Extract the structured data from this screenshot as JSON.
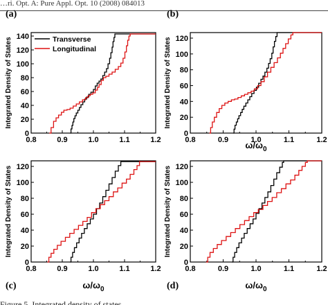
{
  "header_text": "…ri. Opt. A: Pure Appl. Opt. 10 (2008) 084013",
  "footer_text": "Figure 5. Integrated density of states …",
  "colors": {
    "transverse": "#000000",
    "longitudinal": "#dd1111",
    "axis": "#000000"
  },
  "chart_data": [
    {
      "type": "line",
      "panel_label": "(a)",
      "xlabel": "",
      "ylabel": "Integrated Density of States",
      "xlim": [
        0.8,
        1.2
      ],
      "ylim": [
        0,
        145
      ],
      "xticks": [
        "0.8",
        "0.9",
        "1.0",
        "1.1",
        "1.2"
      ],
      "yticks": [
        "0",
        "20",
        "40",
        "60",
        "80",
        "100",
        "120",
        "140"
      ],
      "legend_location": "top-left",
      "series": [
        {
          "name": "Transverse",
          "color": "#000000",
          "points": [
            [
              0.925,
              0
            ],
            [
              0.928,
              6
            ],
            [
              0.931,
              11
            ],
            [
              0.934,
              16
            ],
            [
              0.937,
              21
            ],
            [
              0.941,
              25
            ],
            [
              0.945,
              29
            ],
            [
              0.95,
              33
            ],
            [
              0.955,
              37
            ],
            [
              0.96,
              41
            ],
            [
              0.966,
              45
            ],
            [
              0.972,
              49
            ],
            [
              0.978,
              52
            ],
            [
              0.985,
              56
            ],
            [
              0.992,
              59
            ],
            [
              1.0,
              63
            ],
            [
              1.006,
              68
            ],
            [
              1.012,
              72
            ],
            [
              1.018,
              75
            ],
            [
              1.024,
              78
            ],
            [
              1.03,
              83
            ],
            [
              1.036,
              88
            ],
            [
              1.042,
              93
            ],
            [
              1.047,
              100
            ],
            [
              1.052,
              108
            ],
            [
              1.056,
              116
            ],
            [
              1.06,
              124
            ],
            [
              1.063,
              132
            ],
            [
              1.066,
              138
            ],
            [
              1.069,
              143
            ],
            [
              1.2,
              143
            ]
          ]
        },
        {
          "name": "Longitudinal",
          "color": "#dd1111",
          "points": [
            [
              0.858,
              0
            ],
            [
              0.864,
              8
            ],
            [
              0.872,
              17
            ],
            [
              0.88,
              22
            ],
            [
              0.888,
              26
            ],
            [
              0.897,
              30
            ],
            [
              0.905,
              33
            ],
            [
              0.915,
              34
            ],
            [
              0.925,
              36
            ],
            [
              0.935,
              39
            ],
            [
              0.945,
              42
            ],
            [
              0.955,
              45
            ],
            [
              0.965,
              48
            ],
            [
              0.975,
              51
            ],
            [
              0.983,
              54
            ],
            [
              0.99,
              56
            ],
            [
              0.998,
              58
            ],
            [
              1.006,
              62
            ],
            [
              1.013,
              66
            ],
            [
              1.018,
              70
            ],
            [
              1.025,
              76
            ],
            [
              1.032,
              80
            ],
            [
              1.04,
              82
            ],
            [
              1.05,
              85
            ],
            [
              1.06,
              88
            ],
            [
              1.07,
              92
            ],
            [
              1.08,
              96
            ],
            [
              1.088,
              101
            ],
            [
              1.095,
              108
            ],
            [
              1.101,
              117
            ],
            [
              1.106,
              126
            ],
            [
              1.11,
              134
            ],
            [
              1.114,
              140
            ],
            [
              1.118,
              143
            ],
            [
              1.2,
              143
            ]
          ]
        }
      ]
    },
    {
      "type": "line",
      "panel_label": "(b)",
      "xlabel": "ω/ω",
      "xlabel_sub": "0",
      "ylabel": "Integrated Density of States",
      "xlim": [
        0.8,
        1.2
      ],
      "ylim": [
        0,
        127
      ],
      "xticks": [
        "0.8",
        "0.9",
        "1.0",
        "1.1",
        "1.2"
      ],
      "yticks": [
        "0",
        "20",
        "40",
        "60",
        "80",
        "100",
        "120"
      ],
      "series": [
        {
          "name": "Transverse",
          "color": "#000000",
          "points": [
            [
              0.93,
              0
            ],
            [
              0.933,
              5
            ],
            [
              0.936,
              10
            ],
            [
              0.94,
              14
            ],
            [
              0.944,
              18
            ],
            [
              0.948,
              22
            ],
            [
              0.953,
              26
            ],
            [
              0.958,
              30
            ],
            [
              0.963,
              34
            ],
            [
              0.969,
              38
            ],
            [
              0.975,
              42
            ],
            [
              0.981,
              46
            ],
            [
              0.987,
              50
            ],
            [
              0.994,
              54
            ],
            [
              1.001,
              58
            ],
            [
              1.008,
              63
            ],
            [
              1.015,
              68
            ],
            [
              1.021,
              72
            ],
            [
              1.027,
              77
            ],
            [
              1.033,
              82
            ],
            [
              1.038,
              88
            ],
            [
              1.043,
              94
            ],
            [
              1.048,
              101
            ],
            [
              1.052,
              109
            ],
            [
              1.056,
              116
            ],
            [
              1.06,
              122
            ],
            [
              1.064,
              127
            ],
            [
              1.2,
              127
            ]
          ]
        },
        {
          "name": "Longitudinal",
          "color": "#dd1111",
          "points": [
            [
              0.858,
              0
            ],
            [
              0.862,
              7
            ],
            [
              0.867,
              14
            ],
            [
              0.873,
              20
            ],
            [
              0.88,
              26
            ],
            [
              0.888,
              31
            ],
            [
              0.896,
              35
            ],
            [
              0.905,
              38
            ],
            [
              0.915,
              40
            ],
            [
              0.925,
              42
            ],
            [
              0.935,
              43
            ],
            [
              0.945,
              45
            ],
            [
              0.955,
              47
            ],
            [
              0.965,
              49
            ],
            [
              0.975,
              51
            ],
            [
              0.985,
              53
            ],
            [
              0.995,
              56
            ],
            [
              1.005,
              60
            ],
            [
              1.015,
              65
            ],
            [
              1.025,
              71
            ],
            [
              1.035,
              77
            ],
            [
              1.045,
              83
            ],
            [
              1.055,
              89
            ],
            [
              1.065,
              95
            ],
            [
              1.074,
              101
            ],
            [
              1.082,
              107
            ],
            [
              1.09,
              113
            ],
            [
              1.098,
              119
            ],
            [
              1.106,
              124
            ],
            [
              1.112,
              127
            ],
            [
              1.2,
              127
            ]
          ]
        }
      ]
    },
    {
      "type": "line",
      "panel_label": "(c)",
      "xlabel": "ω/ω",
      "xlabel_sub": "0",
      "ylabel": "Integrated Density of States",
      "xlim": [
        0.8,
        1.2
      ],
      "ylim": [
        0,
        127
      ],
      "xticks": [
        "0.8",
        "0.9",
        "1.0",
        "1.1",
        "1.2"
      ],
      "yticks": [
        "0",
        "20",
        "40",
        "60",
        "80",
        "100",
        "120"
      ],
      "series": [
        {
          "name": "Transverse",
          "color": "#000000",
          "points": [
            [
              0.924,
              0
            ],
            [
              0.928,
              6
            ],
            [
              0.933,
              12
            ],
            [
              0.939,
              18
            ],
            [
              0.946,
              24
            ],
            [
              0.954,
              30
            ],
            [
              0.962,
              36
            ],
            [
              0.971,
              42
            ],
            [
              0.98,
              48
            ],
            [
              0.99,
              54
            ],
            [
              1.0,
              60
            ],
            [
              1.01,
              67
            ],
            [
              1.02,
              74
            ],
            [
              1.03,
              82
            ],
            [
              1.04,
              90
            ],
            [
              1.05,
              98
            ],
            [
              1.06,
              106
            ],
            [
              1.07,
              114
            ],
            [
              1.08,
              121
            ],
            [
              1.088,
              126
            ],
            [
              1.2,
              126
            ]
          ]
        },
        {
          "name": "Longitudinal",
          "color": "#dd1111",
          "points": [
            [
              0.852,
              0
            ],
            [
              0.857,
              6
            ],
            [
              0.864,
              11
            ],
            [
              0.873,
              16
            ],
            [
              0.884,
              21
            ],
            [
              0.896,
              26
            ],
            [
              0.91,
              31
            ],
            [
              0.924,
              36
            ],
            [
              0.938,
              41
            ],
            [
              0.952,
              46
            ],
            [
              0.966,
              51
            ],
            [
              0.98,
              56
            ],
            [
              0.994,
              62
            ],
            [
              1.008,
              67
            ],
            [
              1.022,
              72
            ],
            [
              1.036,
              77
            ],
            [
              1.05,
              82
            ],
            [
              1.064,
              88
            ],
            [
              1.078,
              93
            ],
            [
              1.092,
              99
            ],
            [
              1.106,
              104
            ],
            [
              1.118,
              110
            ],
            [
              1.13,
              116
            ],
            [
              1.14,
              121
            ],
            [
              1.148,
              126
            ],
            [
              1.2,
              126
            ]
          ]
        }
      ]
    },
    {
      "type": "line",
      "panel_label": "(d)",
      "xlabel": "ω/ω",
      "xlabel_sub": "0",
      "ylabel": "Integrated Density of States",
      "xlim": [
        0.8,
        1.2
      ],
      "ylim": [
        0,
        127
      ],
      "xticks": [
        "0.8",
        "0.9",
        "1.0",
        "1.1",
        "1.2"
      ],
      "yticks": [
        "0",
        "20",
        "40",
        "60",
        "80",
        "100",
        "120"
      ],
      "series": [
        {
          "name": "Transverse",
          "color": "#000000",
          "points": [
            [
              0.926,
              0
            ],
            [
              0.93,
              6
            ],
            [
              0.935,
              12
            ],
            [
              0.941,
              18
            ],
            [
              0.948,
              24
            ],
            [
              0.956,
              30
            ],
            [
              0.964,
              36
            ],
            [
              0.973,
              42
            ],
            [
              0.982,
              48
            ],
            [
              0.991,
              54
            ],
            [
              1.0,
              61
            ],
            [
              1.009,
              67
            ],
            [
              1.018,
              74
            ],
            [
              1.027,
              81
            ],
            [
              1.036,
              88
            ],
            [
              1.045,
              96
            ],
            [
              1.054,
              104
            ],
            [
              1.063,
              112
            ],
            [
              1.072,
              119
            ],
            [
              1.08,
              125
            ],
            [
              1.084,
              127
            ],
            [
              1.2,
              127
            ]
          ]
        },
        {
          "name": "Longitudinal",
          "color": "#dd1111",
          "points": [
            [
              0.848,
              0
            ],
            [
              0.853,
              6
            ],
            [
              0.86,
              12
            ],
            [
              0.87,
              17
            ],
            [
              0.882,
              22
            ],
            [
              0.895,
              27
            ],
            [
              0.909,
              32
            ],
            [
              0.923,
              37
            ],
            [
              0.937,
              42
            ],
            [
              0.951,
              47
            ],
            [
              0.965,
              52
            ],
            [
              0.979,
              57
            ],
            [
              0.993,
              62
            ],
            [
              1.007,
              66
            ],
            [
              1.021,
              71
            ],
            [
              1.035,
              76
            ],
            [
              1.049,
              81
            ],
            [
              1.063,
              87
            ],
            [
              1.077,
              92
            ],
            [
              1.091,
              98
            ],
            [
              1.105,
              103
            ],
            [
              1.118,
              109
            ],
            [
              1.13,
              115
            ],
            [
              1.14,
              120
            ],
            [
              1.15,
              125
            ],
            [
              1.156,
              127
            ],
            [
              1.2,
              127
            ]
          ]
        }
      ]
    }
  ]
}
